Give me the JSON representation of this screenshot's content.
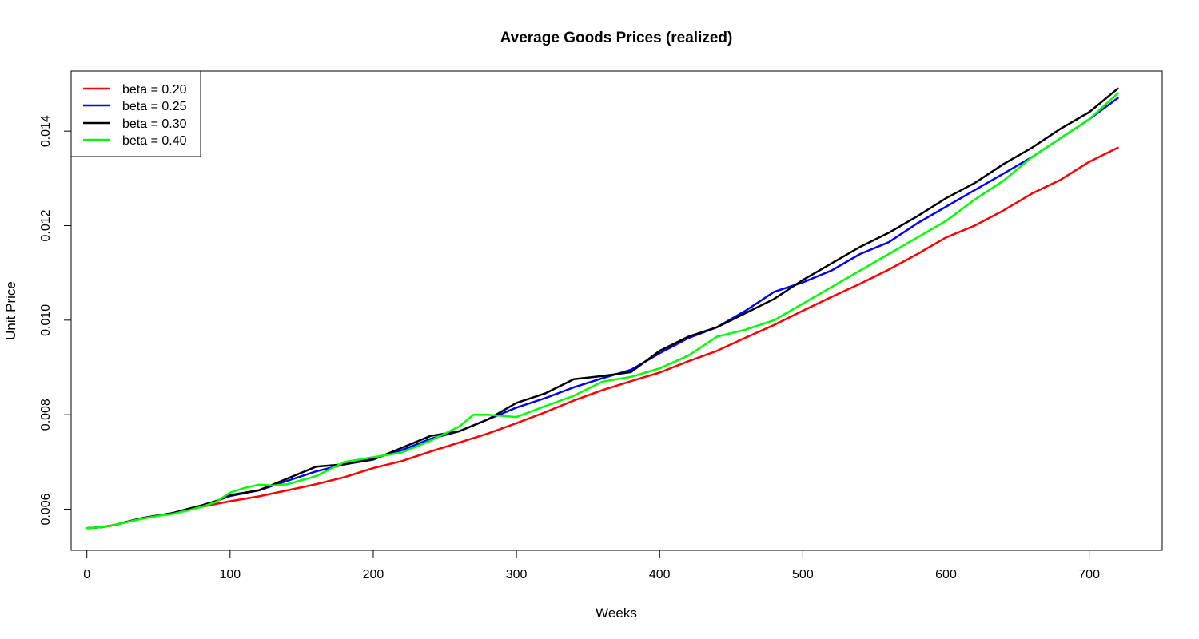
{
  "chart_data": {
    "type": "line",
    "title": "Average Goods Prices (realized)",
    "xlabel": "Weeks",
    "ylabel": "Unit Price",
    "xlim": [
      -11,
      751
    ],
    "ylim": [
      0.00513,
      0.01527
    ],
    "xticks": [
      0,
      100,
      200,
      300,
      400,
      500,
      600,
      700
    ],
    "xtick_labels": [
      "0",
      "100",
      "200",
      "300",
      "400",
      "500",
      "600",
      "700"
    ],
    "yticks": [
      0.006,
      0.008,
      0.01,
      0.012,
      0.014
    ],
    "ytick_labels": [
      "0.006",
      "0.008",
      "0.010",
      "0.012",
      "0.014"
    ],
    "grid": false,
    "legend_position": "top-left",
    "series": [
      {
        "name": "beta = 0.20",
        "legend_label": "beta = 0.20",
        "color": "#ff0000",
        "x": [
          0,
          10,
          20,
          30,
          40,
          50,
          60,
          70,
          80,
          90,
          100,
          120,
          140,
          160,
          180,
          200,
          220,
          240,
          260,
          280,
          300,
          320,
          340,
          360,
          380,
          400,
          420,
          440,
          460,
          480,
          500,
          520,
          540,
          560,
          580,
          600,
          620,
          640,
          660,
          680,
          700,
          720
        ],
        "y": [
          0.0056,
          0.00562,
          0.00567,
          0.00574,
          0.00581,
          0.00586,
          0.00592,
          0.00598,
          0.00605,
          0.00611,
          0.00617,
          0.00627,
          0.0064,
          0.00653,
          0.00668,
          0.00687,
          0.00702,
          0.00722,
          0.00741,
          0.0076,
          0.00782,
          0.00805,
          0.0083,
          0.00852,
          0.00871,
          0.00889,
          0.00913,
          0.00935,
          0.00963,
          0.0099,
          0.0102,
          0.01049,
          0.01077,
          0.01107,
          0.0114,
          0.01175,
          0.012,
          0.01232,
          0.01268,
          0.01297,
          0.01335,
          0.01365
        ]
      },
      {
        "name": "beta = 0.25",
        "legend_label": "beta = 0.25",
        "color": "#0000ff",
        "x": [
          0,
          10,
          20,
          30,
          40,
          50,
          60,
          70,
          80,
          90,
          100,
          120,
          140,
          160,
          180,
          200,
          220,
          240,
          260,
          280,
          300,
          320,
          340,
          360,
          380,
          400,
          420,
          440,
          460,
          480,
          500,
          520,
          540,
          560,
          580,
          600,
          620,
          640,
          660,
          680,
          700,
          720
        ],
        "y": [
          0.0056,
          0.00562,
          0.00567,
          0.00575,
          0.00582,
          0.00587,
          0.00592,
          0.006,
          0.00608,
          0.00617,
          0.00628,
          0.0064,
          0.0066,
          0.0068,
          0.00695,
          0.00707,
          0.00725,
          0.00749,
          0.00765,
          0.0079,
          0.00815,
          0.00835,
          0.00858,
          0.00877,
          0.00895,
          0.0093,
          0.00962,
          0.00985,
          0.0102,
          0.0106,
          0.0108,
          0.01105,
          0.0114,
          0.01165,
          0.01205,
          0.0124,
          0.01275,
          0.0131,
          0.01345,
          0.01385,
          0.01425,
          0.0147
        ]
      },
      {
        "name": "beta = 0.30",
        "legend_label": "beta = 0.30",
        "color": "#000000",
        "x": [
          0,
          10,
          20,
          30,
          40,
          50,
          60,
          70,
          80,
          90,
          100,
          120,
          140,
          160,
          180,
          200,
          220,
          240,
          260,
          280,
          300,
          320,
          340,
          360,
          380,
          400,
          420,
          440,
          460,
          480,
          500,
          520,
          540,
          560,
          580,
          600,
          620,
          640,
          660,
          680,
          700,
          720
        ],
        "y": [
          0.0056,
          0.00562,
          0.00567,
          0.00575,
          0.00582,
          0.00587,
          0.00592,
          0.006,
          0.00608,
          0.00617,
          0.0063,
          0.0064,
          0.00665,
          0.0069,
          0.00695,
          0.00705,
          0.0073,
          0.00755,
          0.00765,
          0.0079,
          0.00825,
          0.00845,
          0.00875,
          0.00882,
          0.0089,
          0.00935,
          0.00965,
          0.00985,
          0.01015,
          0.01045,
          0.01085,
          0.0112,
          0.01155,
          0.01185,
          0.0122,
          0.01258,
          0.0129,
          0.0133,
          0.01365,
          0.01405,
          0.0144,
          0.0149
        ]
      },
      {
        "name": "beta = 0.40",
        "legend_label": "beta = 0.40",
        "color": "#00ff00",
        "x": [
          0,
          10,
          20,
          30,
          40,
          50,
          60,
          70,
          80,
          90,
          100,
          110,
          120,
          130,
          140,
          160,
          180,
          200,
          220,
          240,
          260,
          270,
          280,
          300,
          320,
          340,
          360,
          380,
          400,
          420,
          440,
          460,
          480,
          500,
          520,
          540,
          560,
          580,
          600,
          620,
          640,
          660,
          680,
          700,
          720
        ],
        "y": [
          0.0056,
          0.00562,
          0.00567,
          0.00574,
          0.00581,
          0.00586,
          0.0059,
          0.00597,
          0.00605,
          0.00615,
          0.00635,
          0.00645,
          0.00652,
          0.0065,
          0.00653,
          0.0067,
          0.007,
          0.0071,
          0.0072,
          0.00745,
          0.00775,
          0.008,
          0.008,
          0.00795,
          0.00818,
          0.0084,
          0.0087,
          0.0088,
          0.00898,
          0.00925,
          0.00965,
          0.0098,
          0.01,
          0.01035,
          0.0107,
          0.01105,
          0.0114,
          0.01175,
          0.0121,
          0.01255,
          0.01295,
          0.01345,
          0.01385,
          0.01425,
          0.0148
        ]
      }
    ]
  }
}
